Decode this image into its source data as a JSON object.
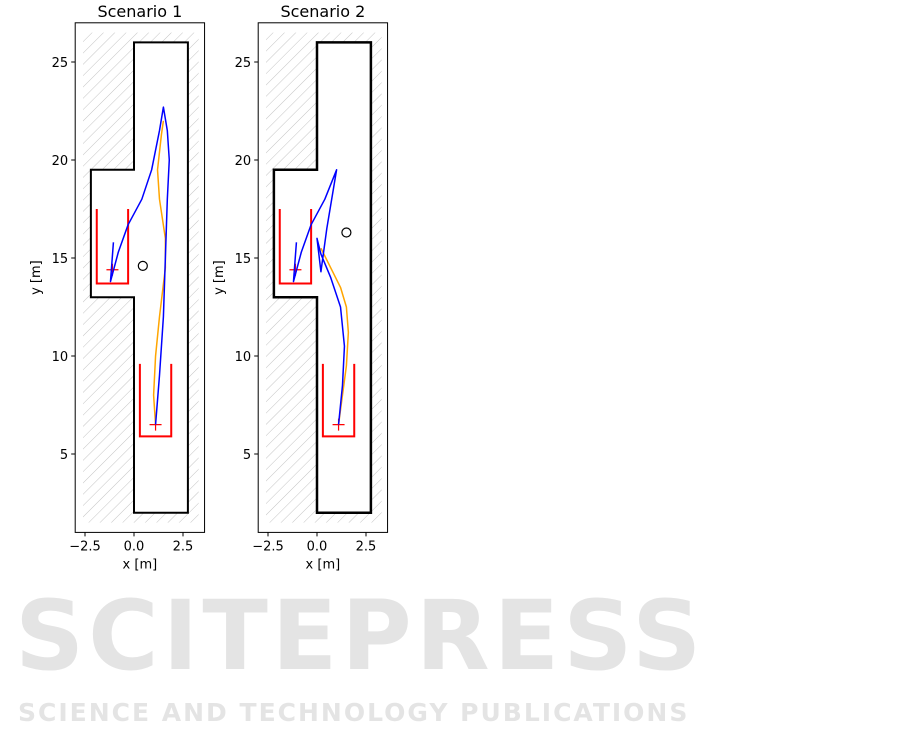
{
  "watermark": {
    "main": "SCITEPRESS",
    "sub": "SCIENCE AND TECHNOLOGY PUBLICATIONS"
  },
  "chart_data": [
    {
      "type": "line",
      "title": "Scenario 1",
      "xlabel": "x [m]",
      "ylabel": "y [m]",
      "xlim": [
        -3,
        3.6
      ],
      "ylim": [
        1,
        27
      ],
      "xticks": [
        {
          "v": -2.5,
          "label": "−2.5"
        },
        {
          "v": 0,
          "label": "0.0"
        },
        {
          "v": 2.5,
          "label": "2.5"
        }
      ],
      "yticks": [
        {
          "v": 5,
          "label": "5"
        },
        {
          "v": 10,
          "label": "10"
        },
        {
          "v": 15,
          "label": "15"
        },
        {
          "v": 20,
          "label": "20"
        },
        {
          "v": 25,
          "label": "25"
        }
      ],
      "boundary": [
        [
          0,
          26
        ],
        [
          2.75,
          26
        ],
        [
          2.75,
          2
        ],
        [
          0,
          2
        ],
        [
          0,
          13
        ],
        [
          -2.2,
          13
        ],
        [
          -2.2,
          19.5
        ],
        [
          0,
          19.5
        ],
        [
          0,
          26
        ]
      ],
      "parking_slots": [
        {
          "x": [
            -1.9,
            -0.3
          ],
          "y": [
            13.7,
            17.5
          ],
          "target": [
            -1.1,
            14.4
          ]
        },
        {
          "x": [
            0.3,
            1.9
          ],
          "y": [
            5.9,
            9.6
          ],
          "target": [
            1.1,
            6.5
          ]
        }
      ],
      "obstacle": [
        0.45,
        14.6
      ],
      "series": [
        {
          "color": "#ffa500",
          "points": [
            [
              1.1,
              6.5
            ],
            [
              1.0,
              8
            ],
            [
              1.1,
              10
            ],
            [
              1.3,
              12
            ],
            [
              1.6,
              14.5
            ],
            [
              1.6,
              16
            ],
            [
              1.3,
              18
            ],
            [
              1.2,
              19.5
            ],
            [
              1.4,
              21.3
            ],
            [
              1.5,
              22
            ]
          ]
        },
        {
          "color": "#0000ff",
          "points": [
            [
              1.1,
              6.5
            ],
            [
              1.3,
              9
            ],
            [
              1.5,
              12
            ],
            [
              1.6,
              15
            ],
            [
              1.7,
              18
            ],
            [
              1.8,
              20
            ],
            [
              1.7,
              21.5
            ],
            [
              1.5,
              22.7
            ],
            [
              1.3,
              21.5
            ],
            [
              0.9,
              19.5
            ],
            [
              0.4,
              18
            ],
            [
              -0.3,
              16.7
            ],
            [
              -0.8,
              15.3
            ],
            [
              -1.2,
              13.8
            ],
            [
              -1.05,
              15.8
            ]
          ]
        }
      ]
    },
    {
      "type": "line",
      "title": "Scenario 2",
      "xlabel": "x [m]",
      "ylabel": "y [m]",
      "xlim": [
        -3,
        3.6
      ],
      "ylim": [
        1,
        27
      ],
      "xticks": [
        {
          "v": -2.5,
          "label": "−2.5"
        },
        {
          "v": 0,
          "label": "0.0"
        },
        {
          "v": 2.5,
          "label": "2.5"
        }
      ],
      "yticks": [
        {
          "v": 5,
          "label": "5"
        },
        {
          "v": 10,
          "label": "10"
        },
        {
          "v": 15,
          "label": "15"
        },
        {
          "v": 20,
          "label": "20"
        },
        {
          "v": 25,
          "label": "25"
        }
      ],
      "boundary": [
        [
          0,
          26
        ],
        [
          2.75,
          26
        ],
        [
          2.75,
          2
        ],
        [
          0,
          2
        ],
        [
          0,
          13
        ],
        [
          -2.2,
          13
        ],
        [
          -2.2,
          19.5
        ],
        [
          0,
          19.5
        ],
        [
          0,
          26
        ]
      ],
      "parking_slots": [
        {
          "x": [
            -1.9,
            -0.3
          ],
          "y": [
            13.7,
            17.5
          ],
          "target": [
            -1.1,
            14.4
          ]
        },
        {
          "x": [
            0.3,
            1.9
          ],
          "y": [
            5.9,
            9.6
          ],
          "target": [
            1.1,
            6.5
          ]
        }
      ],
      "obstacle": [
        1.5,
        16.3
      ],
      "series": [
        {
          "color": "#ffa500",
          "points": [
            [
              1.1,
              6.5
            ],
            [
              1.3,
              8
            ],
            [
              1.5,
              9.5
            ],
            [
              1.6,
              11.2
            ],
            [
              1.5,
              12.5
            ],
            [
              1.2,
              13.5
            ],
            [
              0.7,
              14.5
            ],
            [
              0.2,
              15.5
            ]
          ]
        },
        {
          "color": "#0000ff",
          "points": [
            [
              1.1,
              6.5
            ],
            [
              1.3,
              8.5
            ],
            [
              1.4,
              10.5
            ],
            [
              1.2,
              12.5
            ],
            [
              0.7,
              14
            ],
            [
              0.2,
              15.2
            ],
            [
              0,
              16
            ],
            [
              0.2,
              14.3
            ],
            [
              0.5,
              16.5
            ],
            [
              1.0,
              19.5
            ],
            [
              0.4,
              18
            ],
            [
              -0.3,
              16.7
            ],
            [
              -0.8,
              15.3
            ],
            [
              -1.2,
              13.8
            ],
            [
              -1.05,
              15.8
            ]
          ]
        }
      ]
    }
  ]
}
